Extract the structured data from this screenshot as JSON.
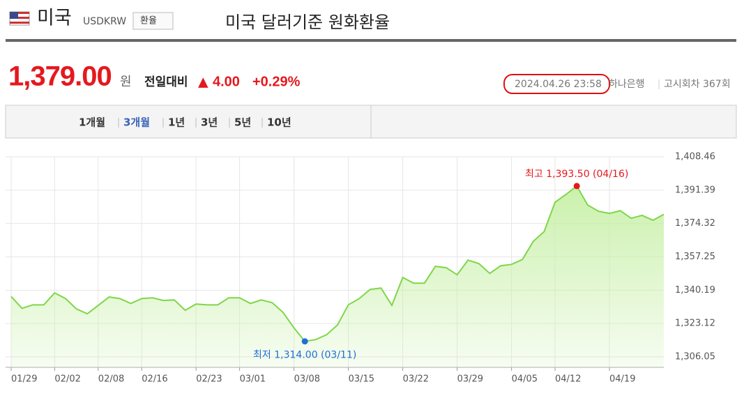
{
  "header": {
    "country": "미국",
    "code": "USDKRW",
    "button": "환율",
    "title": "미국 달러기준 원화환율"
  },
  "price": {
    "value": "1,379.00",
    "unit": "원",
    "change_label": "전일대비",
    "arrow": "▲",
    "change": "4.00",
    "change_pct": "+0.29%",
    "datetime": "2024.04.26 23:58",
    "bank": "하나은행",
    "round": "고시회차 367회"
  },
  "tabs": {
    "items": [
      "1개월",
      "3개월",
      "1년",
      "3년",
      "5년",
      "10년"
    ],
    "selected": 1
  },
  "chart_data": {
    "type": "line",
    "categories": [
      "01/29",
      null,
      null,
      null,
      "02/02",
      null,
      null,
      null,
      "02/08",
      null,
      null,
      null,
      "02/16",
      null,
      null,
      null,
      null,
      "02/23",
      null,
      null,
      null,
      "03/01",
      null,
      null,
      null,
      null,
      "03/08",
      null,
      null,
      null,
      null,
      "03/15",
      null,
      null,
      null,
      null,
      "03/22",
      null,
      null,
      null,
      null,
      "03/29",
      null,
      null,
      null,
      null,
      "04/05",
      null,
      null,
      null,
      "04/12",
      null,
      null,
      null,
      null,
      "04/19",
      null,
      null,
      null,
      null,
      null
    ],
    "values": [
      1337.0,
      1330.9,
      1332.7,
      1332.7,
      1338.8,
      1335.9,
      1330.6,
      1328.1,
      1332.4,
      1336.7,
      1335.9,
      1333.4,
      1335.9,
      1336.3,
      1334.9,
      1335.2,
      1329.9,
      1333.1,
      1332.7,
      1332.7,
      1336.3,
      1336.3,
      1333.4,
      1335.2,
      1333.8,
      1328.8,
      1320.9,
      1314.0,
      1314.9,
      1317.4,
      1322.4,
      1332.7,
      1335.9,
      1340.6,
      1341.3,
      1332.4,
      1346.7,
      1343.8,
      1343.8,
      1352.4,
      1351.7,
      1348.1,
      1355.6,
      1353.8,
      1348.8,
      1352.7,
      1353.4,
      1355.9,
      1365.2,
      1370.2,
      1385.2,
      1389.2,
      1393.5,
      1383.8,
      1380.6,
      1379.5,
      1380.9,
      1377.0,
      1378.5,
      1376.0,
      1379.0
    ],
    "color": "#7fd64a",
    "fill_color": "#c8f0a8",
    "ylim": [
      1300.7,
      1413.1
    ],
    "yticks": [
      {
        "value": 1306.05,
        "label": "1,306.05"
      },
      {
        "value": 1323.12,
        "label": "1,323.12"
      },
      {
        "value": 1340.19,
        "label": "1,340.19"
      },
      {
        "value": 1357.25,
        "label": "1,357.25"
      },
      {
        "value": 1374.32,
        "label": "1,374.32"
      },
      {
        "value": 1391.39,
        "label": "1,391.39"
      },
      {
        "value": 1408.46,
        "label": "1,408.46"
      }
    ],
    "grid": true,
    "annotations": {
      "high": "최고 1,393.50 (04/16)",
      "low": "최저 1,314.00 (03/11)",
      "high_color": "#e4191e",
      "low_color": "#1f6fd8"
    }
  }
}
